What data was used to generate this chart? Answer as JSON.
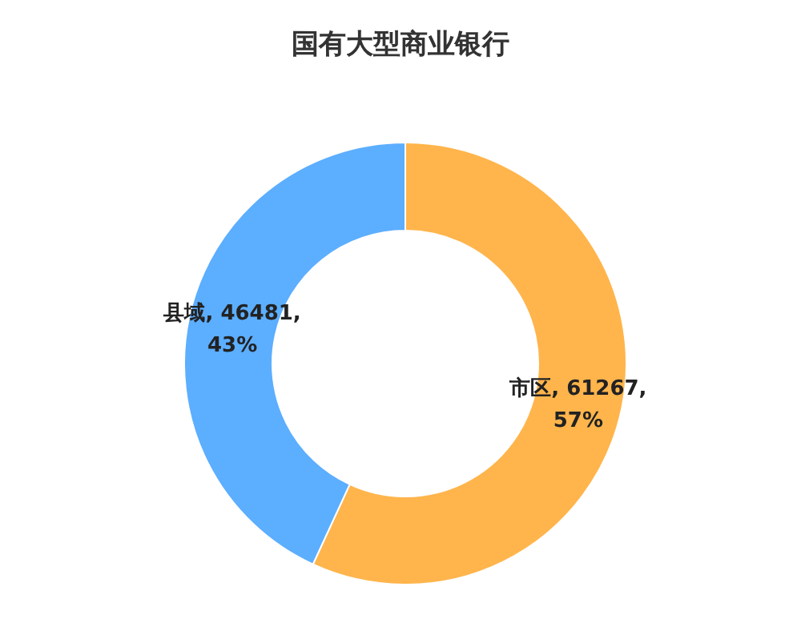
{
  "chart_data": {
    "type": "donut",
    "title": "国有大型商业银行",
    "categories": [
      "市区",
      "县域"
    ],
    "values": [
      61267,
      46481
    ],
    "colors": [
      "#ffb54c",
      "#5caeff"
    ],
    "value_labels": [
      "61267, 57%",
      "46481, 43%"
    ],
    "legend": false
  }
}
